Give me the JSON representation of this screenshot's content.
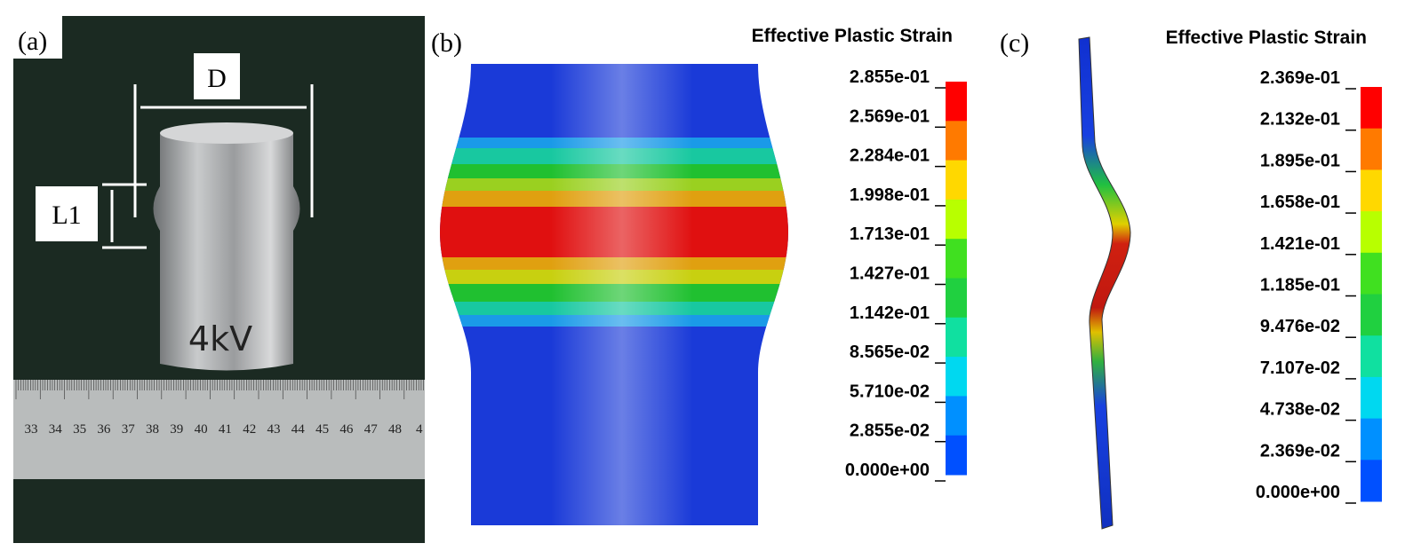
{
  "panels": [
    {
      "label": "(a)",
      "annotations": {
        "diameter": "D",
        "length": "L1",
        "marking": "4kV"
      },
      "ruler": [
        "33",
        "34",
        "35",
        "36",
        "37",
        "38",
        "39",
        "40",
        "41",
        "42",
        "43",
        "44",
        "45",
        "46",
        "47",
        "48",
        "4"
      ]
    },
    {
      "label": "(b)",
      "legend": {
        "title": "Effective Plastic Strain",
        "labels": [
          "2.855e-01",
          "2.569e-01",
          "2.284e-01",
          "1.998e-01",
          "1.713e-01",
          "1.427e-01",
          "1.142e-01",
          "8.565e-02",
          "5.710e-02",
          "2.855e-02",
          "0.000e+00"
        ]
      }
    },
    {
      "label": "(c)",
      "legend": {
        "title": "Effective Plastic Strain",
        "labels": [
          "2.369e-01",
          "2.132e-01",
          "1.895e-01",
          "1.658e-01",
          "1.421e-01",
          "1.185e-01",
          "9.476e-02",
          "7.107e-02",
          "4.738e-02",
          "2.369e-02",
          "0.000e+00"
        ]
      }
    }
  ]
}
